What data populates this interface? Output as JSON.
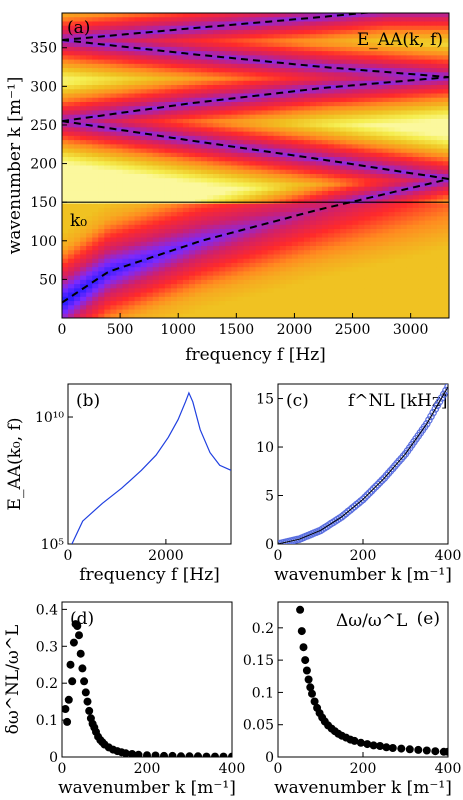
{
  "chart_data": [
    {
      "panel": "(a)",
      "type": "heatmap",
      "xlabel": "frequency f [Hz]",
      "ylabel": "wavenumber k [m⁻¹]",
      "xlim": [
        0,
        3330
      ],
      "ylim": [
        0,
        395
      ],
      "xticks": [
        0,
        500,
        1000,
        1500,
        2000,
        2500,
        3000
      ],
      "yticks": [
        50,
        100,
        150,
        200,
        250,
        300,
        350
      ],
      "annotations": [
        "E_AA(k, f)",
        "k₀"
      ],
      "k0": 150,
      "colormap": [
        "#1a1aff",
        "#7a2aff",
        "#d0206a",
        "#ff2a2a",
        "#ff8a20",
        "#f0c020",
        "#f5ee50",
        "#fdfbb0",
        "#ffffff"
      ],
      "dispersion_curves": [
        {
          "name": "",
          "k": [
            20,
            60,
            100,
            140,
            180
          ],
          "f": [
            0,
            400,
            1200,
            2200,
            3330
          ]
        },
        {
          "name": "",
          "k": [
            255,
            230,
            205,
            180
          ],
          "f": [
            0,
            1100,
            2250,
            3330
          ]
        },
        {
          "name": "",
          "k": [
            255,
            278,
            298,
            312
          ],
          "f": [
            0,
            1100,
            2250,
            3330
          ]
        },
        {
          "name": "",
          "k": [
            360,
            342,
            325,
            312
          ],
          "f": [
            0,
            1100,
            2250,
            3330
          ]
        },
        {
          "name": "",
          "k": [
            360,
            375,
            390,
            398
          ],
          "f": [
            0,
            1100,
            2250,
            2800
          ]
        }
      ]
    },
    {
      "panel": "(b)",
      "type": "line",
      "xlabel": "frequency f [Hz]",
      "ylabel": "E_AA(k₀, f)",
      "xlim": [
        0,
        3330
      ],
      "ylim_log10": [
        5,
        11.3
      ],
      "xticks": [
        0,
        2000
      ],
      "yticks": [
        "10⁵",
        "10¹⁰"
      ],
      "series": [
        {
          "name": "",
          "x": [
            80,
            300,
            700,
            1100,
            1500,
            1800,
            2050,
            2250,
            2400,
            2470,
            2550,
            2700,
            2900,
            3100,
            3330
          ],
          "log10_y": [
            5.0,
            5.9,
            6.6,
            7.2,
            7.9,
            8.5,
            9.2,
            9.9,
            10.6,
            10.95,
            10.6,
            9.5,
            8.6,
            8.1,
            7.9
          ]
        }
      ]
    },
    {
      "panel": "(c)",
      "type": "scatter",
      "xlabel": "wavenumber k [m⁻¹]",
      "ylabel": "",
      "annotation_label": "f^NL [kHz]",
      "xlim": [
        0,
        400
      ],
      "ylim": [
        0,
        16.5
      ],
      "xticks": [
        0,
        200,
        400
      ],
      "yticks": [
        0,
        5,
        10,
        15
      ],
      "series": [
        {
          "name": "",
          "x": [
            0,
            50,
            100,
            150,
            200,
            250,
            300,
            350,
            400
          ],
          "y": [
            0,
            0.5,
            1.4,
            2.8,
            4.6,
            6.8,
            9.3,
            12.4,
            16.2
          ]
        }
      ]
    },
    {
      "panel": "(d)",
      "type": "scatter",
      "xlabel": "wavenumber k [m⁻¹]",
      "ylabel": "δω^NL/ω^L",
      "xlim": [
        0,
        400
      ],
      "ylim": [
        0,
        0.42
      ],
      "xticks": [
        0,
        200,
        400
      ],
      "yticks": [
        0,
        0.1,
        0.2,
        0.3,
        0.4
      ],
      "series": [
        {
          "name": "",
          "x": [
            8,
            12,
            16,
            20,
            24,
            28,
            32,
            36,
            40,
            44,
            48,
            52,
            56,
            60,
            64,
            68,
            72,
            76,
            80,
            85,
            90,
            95,
            100,
            110,
            120,
            130,
            140,
            150,
            165,
            180,
            200,
            220,
            240,
            260,
            280,
            300,
            320,
            340,
            360,
            380,
            400
          ],
          "y": [
            0.13,
            0.095,
            0.155,
            0.25,
            0.205,
            0.31,
            0.36,
            0.355,
            0.33,
            0.28,
            0.24,
            0.205,
            0.175,
            0.15,
            0.125,
            0.105,
            0.09,
            0.08,
            0.068,
            0.055,
            0.046,
            0.04,
            0.034,
            0.026,
            0.02,
            0.016,
            0.013,
            0.01,
            0.008,
            0.006,
            0.005,
            0.004,
            0.003,
            0.003,
            0.002,
            0.002,
            0.002,
            0.001,
            0.001,
            0.001,
            0.001
          ]
        }
      ]
    },
    {
      "panel": "(e)",
      "type": "scatter",
      "xlabel": "wavenumber k [m⁻¹]",
      "ylabel": "",
      "annotation_label": "Δω/ω^L",
      "xlim": [
        0,
        400
      ],
      "ylim": [
        0,
        0.24
      ],
      "xticks": [
        0,
        200,
        400
      ],
      "yticks": [
        0,
        0.05,
        0.1,
        0.15,
        0.2
      ],
      "series": [
        {
          "name": "",
          "x": [
            52,
            56,
            60,
            64,
            68,
            72,
            76,
            80,
            86,
            92,
            98,
            104,
            110,
            118,
            126,
            134,
            142,
            150,
            160,
            170,
            180,
            195,
            210,
            225,
            240,
            255,
            270,
            290,
            310,
            330,
            350,
            370,
            390,
            400
          ],
          "y": [
            0.228,
            0.195,
            0.17,
            0.15,
            0.134,
            0.12,
            0.108,
            0.098,
            0.086,
            0.076,
            0.068,
            0.061,
            0.055,
            0.049,
            0.044,
            0.04,
            0.036,
            0.033,
            0.03,
            0.027,
            0.025,
            0.022,
            0.02,
            0.018,
            0.017,
            0.015,
            0.014,
            0.013,
            0.012,
            0.011,
            0.01,
            0.009,
            0.008,
            0.008
          ]
        }
      ]
    }
  ]
}
